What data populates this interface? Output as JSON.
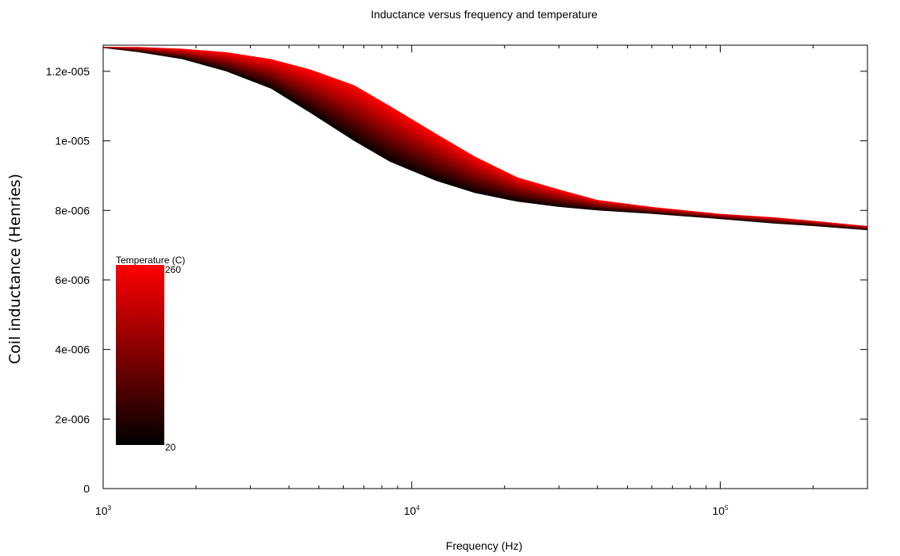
{
  "chart_data": {
    "type": "area",
    "title": "Inductance versus frequency and temperature",
    "xlabel": "Frequency (Hz)",
    "ylabel": "Coil inductance (Henries)",
    "xscale": "log",
    "xlim": [
      1000,
      300000
    ],
    "ylim": [
      0,
      1.275e-05
    ],
    "xticks": [
      {
        "value": 1000,
        "base": "10",
        "exp": "3"
      },
      {
        "value": 10000,
        "base": "10",
        "exp": "4"
      },
      {
        "value": 100000,
        "base": "10",
        "exp": "5"
      }
    ],
    "yticks": [
      {
        "value": 0,
        "label": "0"
      },
      {
        "value": 2e-06,
        "label": "2e-006"
      },
      {
        "value": 4e-06,
        "label": "4e-006"
      },
      {
        "value": 6e-06,
        "label": "6e-006"
      },
      {
        "value": 8e-06,
        "label": "8e-006"
      },
      {
        "value": 1e-05,
        "label": "1e-005"
      },
      {
        "value": 1.2e-05,
        "label": "1.2e-005"
      }
    ],
    "grid": false,
    "colorbar": {
      "title": "Temperature (C)",
      "min": 20,
      "max": 260,
      "min_label": "20",
      "max_label": "260",
      "colors": [
        "#000000",
        "#ff0000"
      ],
      "placement": "left"
    },
    "series": [
      {
        "temperature": 20,
        "x": [
          1000,
          1300,
          1800,
          2500,
          3500,
          4700,
          6500,
          8500,
          12000,
          16000,
          22000,
          30000,
          40000,
          60000,
          100000,
          150000,
          200000,
          300000
        ],
        "y": [
          1.267e-05,
          1.255e-05,
          1.235e-05,
          1.2e-05,
          1.15e-05,
          1.08e-05,
          1e-05,
          9.4e-06,
          8.85e-06,
          8.5e-06,
          8.25e-06,
          8.1e-06,
          8e-06,
          7.9e-06,
          7.75e-06,
          7.62e-06,
          7.55e-06,
          7.43e-06
        ]
      },
      {
        "temperature": 260,
        "x": [
          1000,
          1300,
          1800,
          2500,
          3500,
          4700,
          6500,
          8500,
          12000,
          16000,
          22000,
          30000,
          40000,
          60000,
          100000,
          150000,
          200000,
          300000
        ],
        "y": [
          1.27e-05,
          1.27e-05,
          1.265e-05,
          1.255e-05,
          1.235e-05,
          1.205e-05,
          1.16e-05,
          1.1e-05,
          1.02e-05,
          9.55e-06,
          8.95e-06,
          8.6e-06,
          8.3e-06,
          8.1e-06,
          7.9e-06,
          7.8e-06,
          7.7e-06,
          7.55e-06
        ]
      }
    ]
  }
}
